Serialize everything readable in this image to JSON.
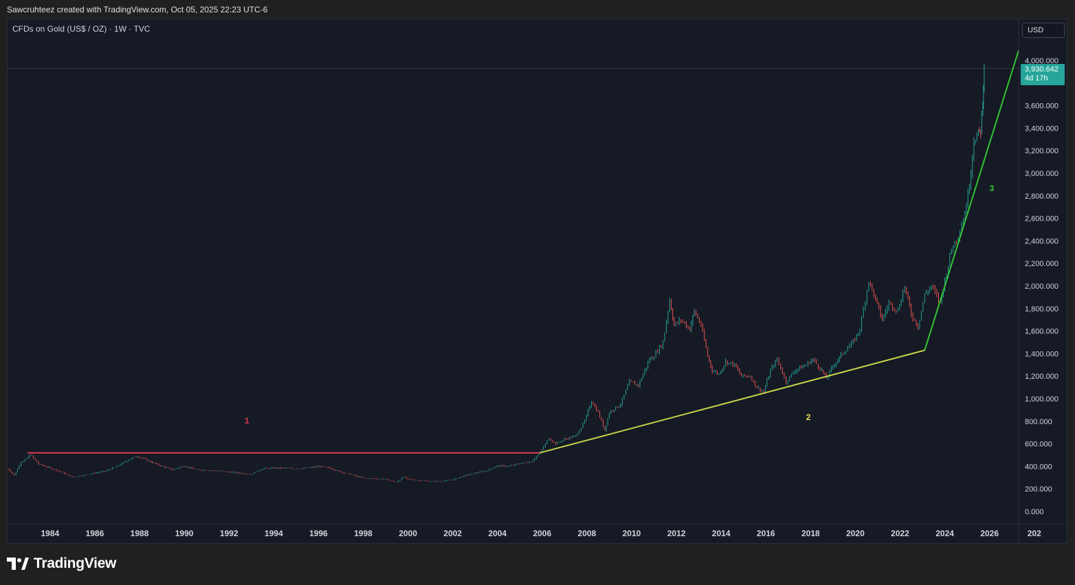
{
  "header": {
    "attribution": "Sawcruhteez created with TradingView.com, Oct 05, 2025 22:23 UTC-6"
  },
  "symbol": {
    "label": "CFDs on Gold (US$ / OZ) · 1W · TVC"
  },
  "currency_button": {
    "label": "USD"
  },
  "price_tag": {
    "price": "3,930.642",
    "countdown": "4d 17h",
    "color": "#26a69a"
  },
  "brand": {
    "name": "TradingView",
    "icon": "tradingview-logo-icon"
  },
  "colors": {
    "up": "#26a69a",
    "down": "#ef5350",
    "red_line": "#e0394f",
    "yellow_line": "#c8d44a",
    "green_line": "#33c433",
    "label_1": "#e0394f",
    "label_2": "#f0e060",
    "label_3": "#33c433"
  },
  "chart_data": {
    "type": "line",
    "title": "CFDs on Gold (US$ / OZ) · 1W · TVC",
    "xlabel": "",
    "ylabel": "",
    "xlim": [
      1982.1,
      2027.3
    ],
    "ylim": [
      -100,
      4150
    ],
    "x_ticks": [
      "1984",
      "1986",
      "1988",
      "1990",
      "1992",
      "1994",
      "1996",
      "1998",
      "2000",
      "2002",
      "2004",
      "2006",
      "2008",
      "2010",
      "2012",
      "2014",
      "2016",
      "2018",
      "2020",
      "2022",
      "2024",
      "2026",
      "202"
    ],
    "y_ticks": [
      "0.000",
      "200.000",
      "400.000",
      "600.000",
      "800.000",
      "1,000.000",
      "1,200.000",
      "1,400.000",
      "1,600.000",
      "1,800.000",
      "2,000.000",
      "2,200.000",
      "2,400.000",
      "2,600.000",
      "2,800.000",
      "3,000.000",
      "3,200.000",
      "3,400.000",
      "3,600.000",
      "4,000.000"
    ],
    "grid": false,
    "series": [
      {
        "values": [
          [
            1982.1,
            380
          ],
          [
            1982.4,
            320
          ],
          [
            1982.7,
            440
          ],
          [
            1983.0,
            470
          ],
          [
            1983.1,
            505
          ],
          [
            1983.5,
            420
          ],
          [
            1984.0,
            385
          ],
          [
            1984.5,
            350
          ],
          [
            1985.0,
            305
          ],
          [
            1985.5,
            320
          ],
          [
            1986.0,
            340
          ],
          [
            1986.5,
            360
          ],
          [
            1987.0,
            400
          ],
          [
            1987.5,
            460
          ],
          [
            1987.9,
            490
          ],
          [
            1988.5,
            440
          ],
          [
            1989.0,
            400
          ],
          [
            1989.5,
            370
          ],
          [
            1990.0,
            405
          ],
          [
            1990.5,
            370
          ],
          [
            1991.0,
            365
          ],
          [
            1991.5,
            360
          ],
          [
            1992.0,
            350
          ],
          [
            1992.5,
            340
          ],
          [
            1993.0,
            330
          ],
          [
            1993.5,
            380
          ],
          [
            1994.0,
            385
          ],
          [
            1994.5,
            385
          ],
          [
            1995.0,
            380
          ],
          [
            1995.5,
            385
          ],
          [
            1996.0,
            400
          ],
          [
            1996.5,
            385
          ],
          [
            1997.0,
            350
          ],
          [
            1997.5,
            325
          ],
          [
            1998.0,
            295
          ],
          [
            1998.5,
            290
          ],
          [
            1999.0,
            285
          ],
          [
            1999.5,
            258
          ],
          [
            1999.8,
            310
          ],
          [
            2000.0,
            285
          ],
          [
            2000.5,
            275
          ],
          [
            2001.0,
            265
          ],
          [
            2001.5,
            270
          ],
          [
            2002.0,
            280
          ],
          [
            2002.5,
            315
          ],
          [
            2003.0,
            340
          ],
          [
            2003.5,
            360
          ],
          [
            2004.0,
            405
          ],
          [
            2004.5,
            400
          ],
          [
            2005.0,
            425
          ],
          [
            2005.5,
            440
          ],
          [
            2005.9,
            520
          ],
          [
            2006.3,
            650
          ],
          [
            2006.6,
            600
          ],
          [
            2007.0,
            640
          ],
          [
            2007.5,
            670
          ],
          [
            2007.9,
            800
          ],
          [
            2008.2,
            980
          ],
          [
            2008.5,
            880
          ],
          [
            2008.8,
            720
          ],
          [
            2009.0,
            880
          ],
          [
            2009.5,
            950
          ],
          [
            2009.9,
            1150
          ],
          [
            2010.3,
            1120
          ],
          [
            2010.8,
            1350
          ],
          [
            2011.0,
            1380
          ],
          [
            2011.4,
            1500
          ],
          [
            2011.7,
            1880
          ],
          [
            2011.9,
            1650
          ],
          [
            2012.2,
            1700
          ],
          [
            2012.6,
            1620
          ],
          [
            2012.8,
            1780
          ],
          [
            2013.1,
            1650
          ],
          [
            2013.4,
            1380
          ],
          [
            2013.6,
            1250
          ],
          [
            2013.9,
            1220
          ],
          [
            2014.2,
            1330
          ],
          [
            2014.6,
            1300
          ],
          [
            2014.9,
            1200
          ],
          [
            2015.3,
            1200
          ],
          [
            2015.6,
            1100
          ],
          [
            2015.9,
            1060
          ],
          [
            2016.2,
            1250
          ],
          [
            2016.5,
            1350
          ],
          [
            2016.9,
            1150
          ],
          [
            2017.3,
            1250
          ],
          [
            2017.8,
            1300
          ],
          [
            2018.1,
            1350
          ],
          [
            2018.5,
            1250
          ],
          [
            2018.7,
            1180
          ],
          [
            2019.0,
            1290
          ],
          [
            2019.5,
            1420
          ],
          [
            2019.9,
            1500
          ],
          [
            2020.2,
            1620
          ],
          [
            2020.6,
            2050
          ],
          [
            2020.9,
            1880
          ],
          [
            2021.2,
            1700
          ],
          [
            2021.5,
            1850
          ],
          [
            2021.9,
            1780
          ],
          [
            2022.2,
            2000
          ],
          [
            2022.5,
            1750
          ],
          [
            2022.8,
            1640
          ],
          [
            2023.1,
            1920
          ],
          [
            2023.4,
            2000
          ],
          [
            2023.8,
            1850
          ],
          [
            2024.0,
            2050
          ],
          [
            2024.3,
            2330
          ],
          [
            2024.6,
            2450
          ],
          [
            2024.9,
            2650
          ],
          [
            2025.1,
            2900
          ],
          [
            2025.3,
            3300
          ],
          [
            2025.5,
            3350
          ],
          [
            2025.6,
            3380
          ],
          [
            2025.7,
            3650
          ],
          [
            2025.76,
            3930
          ]
        ]
      }
    ],
    "trendlines": [
      {
        "color": "#e0394f",
        "from": [
          1983.0,
          520
        ],
        "to": [
          2005.9,
          520
        ]
      },
      {
        "color": "#c8d44a",
        "from": [
          2005.9,
          520
        ],
        "to": [
          2023.1,
          1430
        ]
      },
      {
        "color": "#33c433",
        "from": [
          2023.1,
          1430
        ],
        "to": [
          2027.3,
          4090
        ]
      }
    ],
    "annotations": [
      {
        "text": "1",
        "x": 1992.8,
        "y": 780,
        "color": "#e0394f"
      },
      {
        "text": "2",
        "x": 2017.9,
        "y": 810,
        "color": "#f0e060"
      },
      {
        "text": "3",
        "x": 2026.1,
        "y": 2840,
        "color": "#33c433"
      }
    ],
    "last_price": 3930.642
  }
}
